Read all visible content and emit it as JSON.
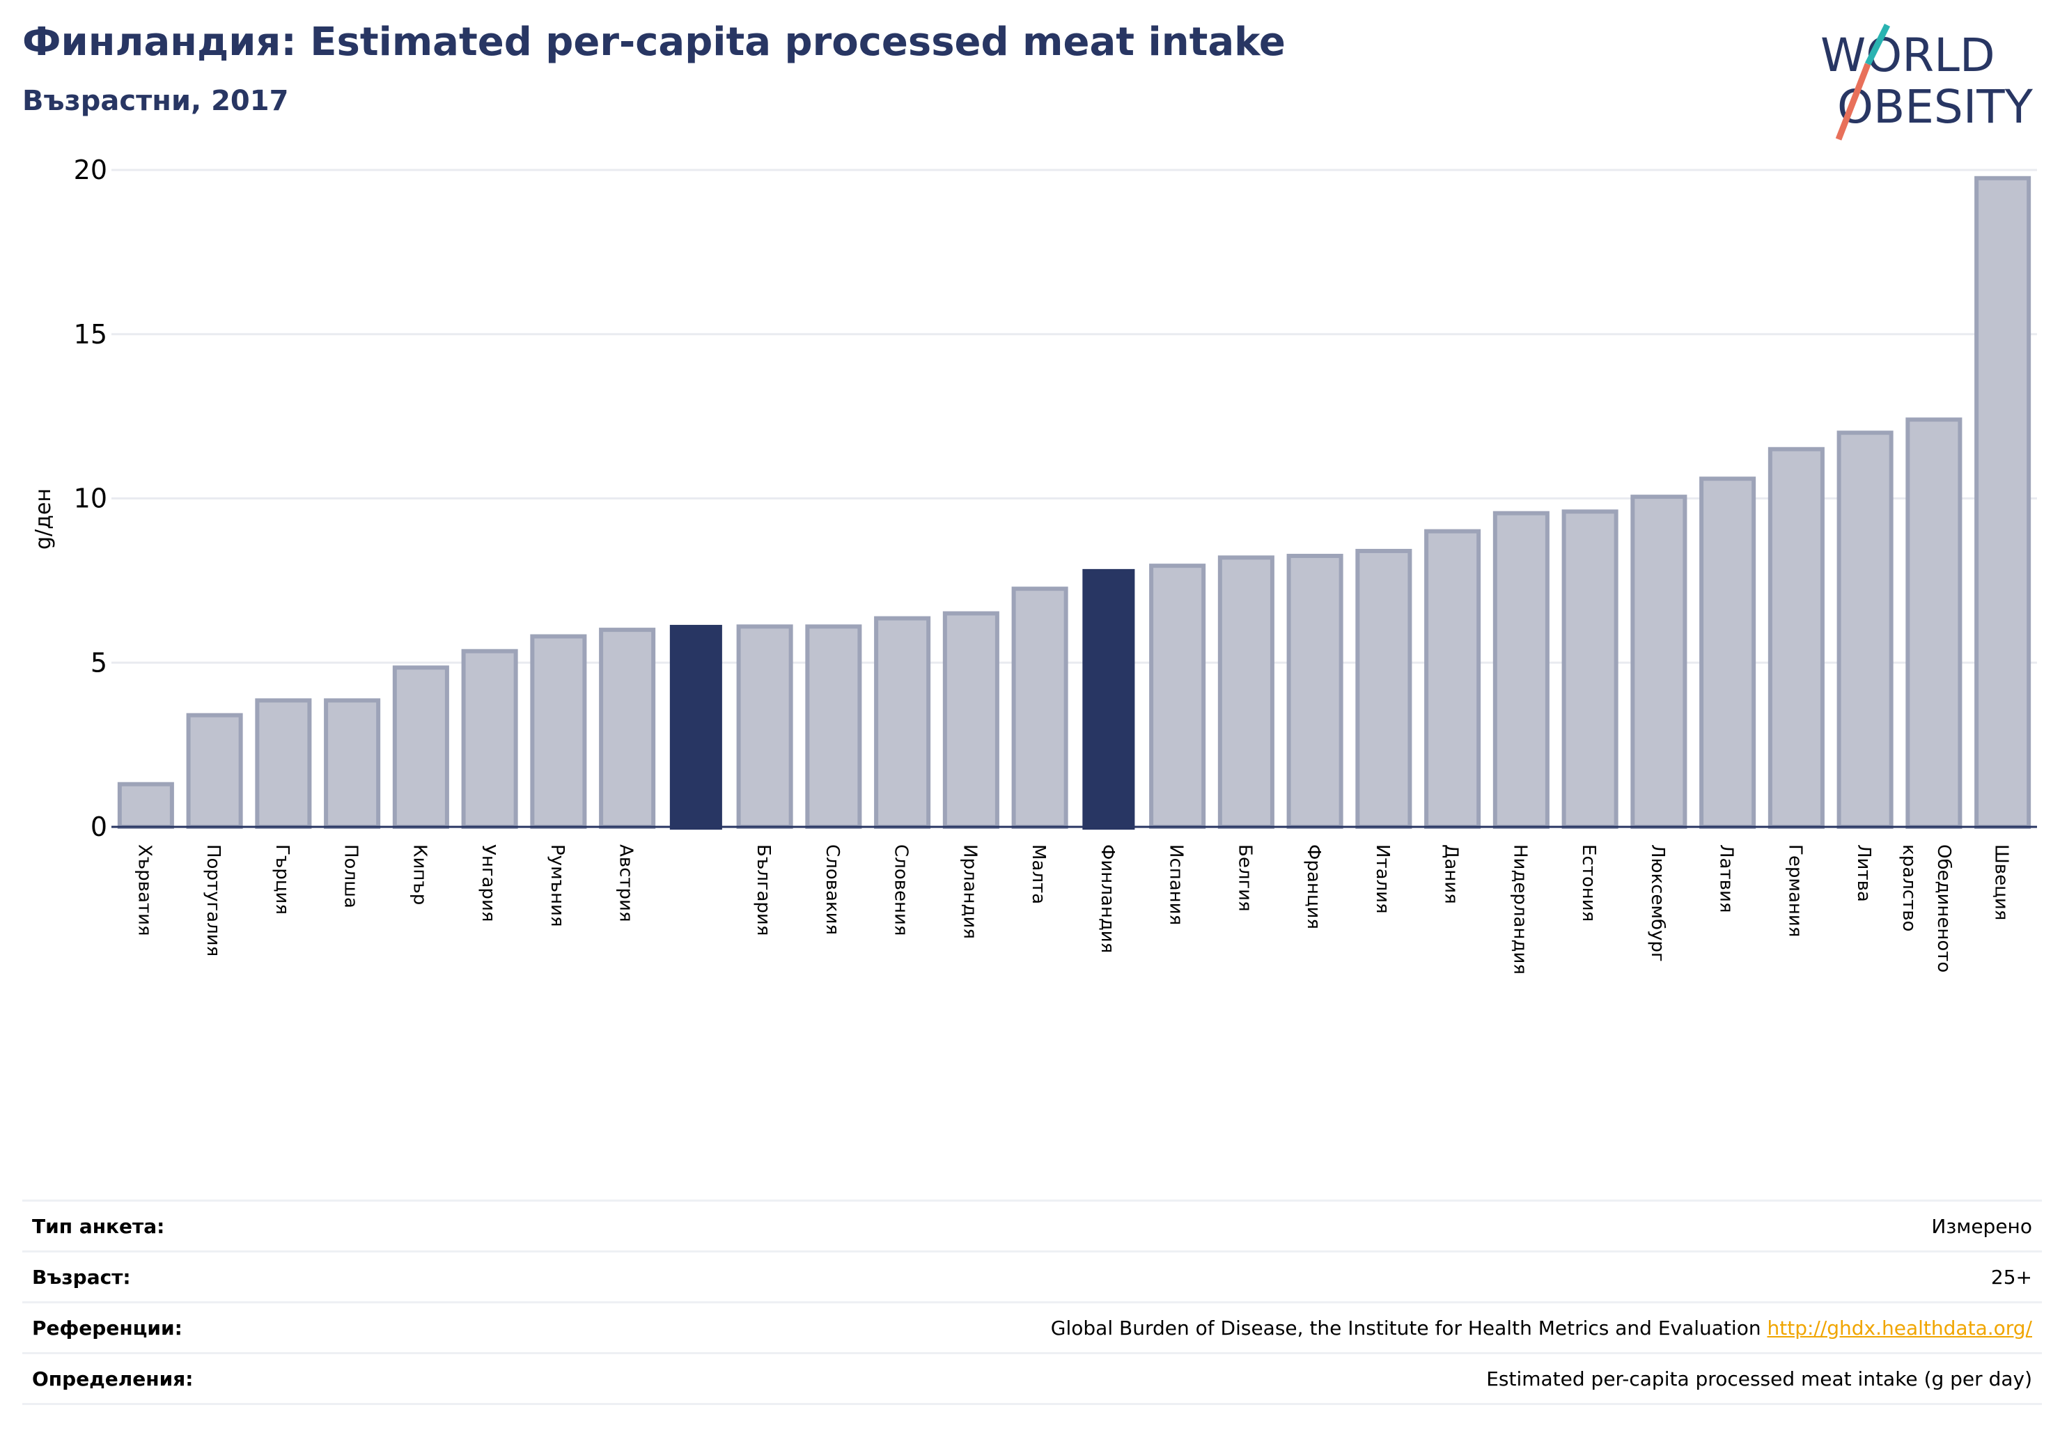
{
  "header": {
    "title": "Финландия: Estimated per-capita processed meat intake",
    "subtitle": "Възрастни, 2017"
  },
  "logo": {
    "line1": "WORLD",
    "line2": "OBESITY"
  },
  "colors": {
    "bar": "#bfc2cf",
    "bar_edge": "#9da3b8",
    "highlight": "#283663",
    "text": "#283663"
  },
  "chart_data": {
    "type": "bar",
    "ylabel": "g/ден",
    "ylim": [
      0,
      20
    ],
    "yticks": [
      0,
      5,
      10,
      15,
      20
    ],
    "grid": true,
    "categories": [
      "Хърватия",
      "Португалия",
      "Гърция",
      "Полша",
      "Кипър",
      "Унгария",
      "Румъния",
      "Австрия",
      "",
      "България",
      "Словакия",
      "Словения",
      "Ирландия",
      "Малта",
      "Финландия",
      "Испания",
      "Белгия",
      "Франция",
      "Италия",
      "Дания",
      "Нидерландия",
      "Естония",
      "Люксембург",
      "Латвия",
      "Германия",
      "Литва",
      "Обединеното кралство",
      "Швеция"
    ],
    "values": [
      1.3,
      3.4,
      3.85,
      3.85,
      4.85,
      5.35,
      5.8,
      6.0,
      6.15,
      6.1,
      6.1,
      6.35,
      6.5,
      7.25,
      7.85,
      7.95,
      8.2,
      8.25,
      8.4,
      9.0,
      9.55,
      9.6,
      10.05,
      10.6,
      11.5,
      12.0,
      12.4,
      19.75
    ],
    "highlighted": [
      "",
      "Финландия"
    ]
  },
  "meta": [
    {
      "label": "Тип анкета:",
      "value": "Измерено"
    },
    {
      "label": "Възраст:",
      "value": "25+"
    },
    {
      "label": "Референции:",
      "value": "Global Burden of Disease, the Institute for Health Metrics and Evaluation",
      "link": "http://ghdx.healthdata.org/"
    },
    {
      "label": "Определения:",
      "value": "Estimated per-capita processed meat intake (g per day)"
    }
  ]
}
